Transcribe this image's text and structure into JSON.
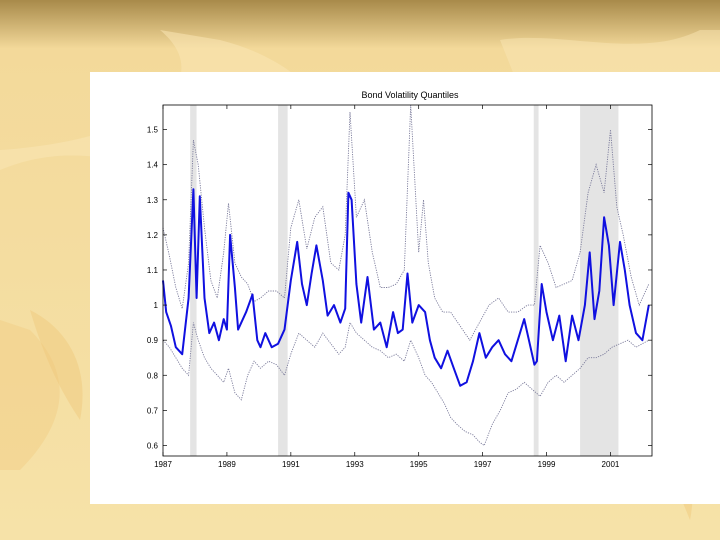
{
  "colors": {
    "slide_top": "#a88a4a",
    "slide_mid": "#f3d99a",
    "slide_bottom": "#f6e2a8",
    "panel": "#ffffff",
    "median_line": "#1010e0",
    "quantile_line": "#7a7a9a",
    "recession_shade": "#e4e4e4",
    "axis": "#000000"
  },
  "chart_data": {
    "type": "line",
    "title": "Bond Volatility Quantiles",
    "xlabel": "",
    "ylabel": "",
    "xlim": [
      1987,
      2002.3
    ],
    "ylim": [
      0.57,
      1.57
    ],
    "x_ticks": [
      1987,
      1989,
      1991,
      1993,
      1995,
      1997,
      1999,
      2001
    ],
    "x_tick_labels": [
      "1987",
      "1989",
      "1991",
      "1993",
      "1995",
      "1997",
      "1999",
      "2001"
    ],
    "y_ticks": [
      0.6,
      0.7,
      0.8,
      0.9,
      1.0,
      1.1,
      1.2,
      1.3,
      1.4,
      1.5
    ],
    "y_tick_labels": [
      "0.6",
      "0.7",
      "0.8",
      "0.9",
      "1",
      "1.1",
      "1.2",
      "1.3",
      "1.4",
      "1.5"
    ],
    "grid": false,
    "legend": "none",
    "shaded_periods": [
      [
        1987.85,
        1988.05
      ],
      [
        1990.6,
        1990.9
      ],
      [
        1998.6,
        1998.75
      ],
      [
        2000.05,
        2001.25
      ]
    ],
    "series": [
      {
        "style": "solid",
        "x": [
          1987.0,
          1987.1,
          1987.25,
          1987.4,
          1987.6,
          1987.8,
          1987.95,
          1988.05,
          1988.15,
          1988.3,
          1988.45,
          1988.6,
          1988.75,
          1988.9,
          1989.0,
          1989.1,
          1989.25,
          1989.35,
          1989.45,
          1989.6,
          1989.8,
          1989.95,
          1990.05,
          1990.2,
          1990.4,
          1990.6,
          1990.8,
          1991.0,
          1991.2,
          1991.35,
          1991.5,
          1991.65,
          1991.8,
          1992.0,
          1992.15,
          1992.35,
          1992.55,
          1992.7,
          1992.8,
          1992.9,
          1993.05,
          1993.2,
          1993.4,
          1993.6,
          1993.8,
          1994.0,
          1994.2,
          1994.35,
          1994.5,
          1994.65,
          1994.8,
          1995.0,
          1995.2,
          1995.35,
          1995.5,
          1995.7,
          1995.9,
          1996.1,
          1996.3,
          1996.5,
          1996.7,
          1996.9,
          1997.1,
          1997.3,
          1997.5,
          1997.7,
          1997.9,
          1998.1,
          1998.3,
          1998.5,
          1998.62,
          1998.7,
          1998.85,
          1999.0,
          1999.2,
          1999.4,
          1999.6,
          1999.8,
          2000.0,
          2000.2,
          2000.35,
          2000.5,
          2000.65,
          2000.8,
          2000.95,
          2001.1,
          2001.3,
          2001.45,
          2001.6,
          2001.8,
          2002.0,
          2002.2
        ],
        "y": [
          1.07,
          0.98,
          0.94,
          0.88,
          0.86,
          1.02,
          1.33,
          1.02,
          1.31,
          1.02,
          0.92,
          0.95,
          0.9,
          0.96,
          0.93,
          1.2,
          1.05,
          0.93,
          0.95,
          0.98,
          1.03,
          0.9,
          0.88,
          0.92,
          0.88,
          0.89,
          0.93,
          1.07,
          1.18,
          1.06,
          1.0,
          1.09,
          1.17,
          1.07,
          0.97,
          1.0,
          0.95,
          0.99,
          1.32,
          1.3,
          1.06,
          0.95,
          1.08,
          0.93,
          0.95,
          0.88,
          0.98,
          0.92,
          0.93,
          1.09,
          0.95,
          1.0,
          0.98,
          0.9,
          0.85,
          0.82,
          0.87,
          0.82,
          0.77,
          0.78,
          0.84,
          0.92,
          0.85,
          0.88,
          0.9,
          0.86,
          0.84,
          0.9,
          0.96,
          0.88,
          0.83,
          0.84,
          1.06,
          0.98,
          0.9,
          0.97,
          0.84,
          0.97,
          0.9,
          1.0,
          1.15,
          0.96,
          1.04,
          1.25,
          1.17,
          1.0,
          1.18,
          1.1,
          1.0,
          0.92,
          0.9,
          1.0
        ]
      },
      {
        "style": "dotted",
        "x": [
          1987.0,
          1987.2,
          1987.4,
          1987.6,
          1987.8,
          1987.95,
          1988.1,
          1988.3,
          1988.5,
          1988.7,
          1988.9,
          1989.05,
          1989.25,
          1989.45,
          1989.65,
          1989.85,
          1990.05,
          1990.3,
          1990.55,
          1990.8,
          1991.0,
          1991.25,
          1991.5,
          1991.75,
          1992.0,
          1992.25,
          1992.5,
          1992.7,
          1992.85,
          1993.05,
          1993.3,
          1993.55,
          1993.8,
          1994.05,
          1994.3,
          1994.55,
          1994.75,
          1995.0,
          1995.15,
          1995.3,
          1995.5,
          1995.75,
          1996.0,
          1996.3,
          1996.6,
          1996.9,
          1997.2,
          1997.5,
          1997.8,
          1998.1,
          1998.4,
          1998.62,
          1998.8,
          1999.05,
          1999.3,
          1999.55,
          1999.8,
          2000.05,
          2000.3,
          2000.55,
          2000.8,
          2001.0,
          2001.2,
          2001.4,
          2001.65,
          2001.9,
          2002.2
        ],
        "y": [
          1.22,
          1.14,
          1.05,
          0.99,
          1.12,
          1.47,
          1.4,
          1.22,
          1.07,
          1.02,
          1.15,
          1.29,
          1.12,
          1.08,
          1.06,
          1.01,
          1.02,
          1.04,
          1.04,
          1.02,
          1.22,
          1.3,
          1.16,
          1.25,
          1.28,
          1.12,
          1.1,
          1.2,
          1.55,
          1.25,
          1.3,
          1.15,
          1.05,
          1.05,
          1.06,
          1.1,
          1.57,
          1.15,
          1.3,
          1.12,
          1.02,
          0.98,
          0.98,
          0.94,
          0.9,
          0.95,
          1.0,
          1.02,
          0.98,
          0.98,
          1.0,
          1.0,
          1.17,
          1.12,
          1.05,
          1.06,
          1.07,
          1.15,
          1.32,
          1.4,
          1.32,
          1.5,
          1.28,
          1.2,
          1.08,
          1.0,
          1.06
        ]
      },
      {
        "style": "dotted",
        "x": [
          1987.0,
          1987.2,
          1987.4,
          1987.6,
          1987.8,
          1987.95,
          1988.1,
          1988.3,
          1988.5,
          1988.7,
          1988.9,
          1989.05,
          1989.25,
          1989.45,
          1989.65,
          1989.85,
          1990.05,
          1990.3,
          1990.55,
          1990.8,
          1991.0,
          1991.25,
          1991.5,
          1991.75,
          1992.0,
          1992.25,
          1992.5,
          1992.7,
          1992.85,
          1993.05,
          1993.3,
          1993.55,
          1993.8,
          1994.05,
          1994.3,
          1994.55,
          1994.75,
          1995.0,
          1995.2,
          1995.4,
          1995.6,
          1995.8,
          1996.0,
          1996.2,
          1996.45,
          1996.7,
          1996.9,
          1997.05,
          1997.3,
          1997.55,
          1997.8,
          1998.05,
          1998.3,
          1998.55,
          1998.8,
          1999.05,
          1999.3,
          1999.55,
          1999.8,
          2000.05,
          2000.3,
          2000.55,
          2000.8,
          2001.05,
          2001.3,
          2001.55,
          2001.8,
          2002.2
        ],
        "y": [
          0.9,
          0.88,
          0.85,
          0.82,
          0.8,
          0.95,
          0.9,
          0.85,
          0.82,
          0.8,
          0.78,
          0.82,
          0.75,
          0.73,
          0.8,
          0.84,
          0.82,
          0.84,
          0.83,
          0.8,
          0.86,
          0.92,
          0.9,
          0.88,
          0.92,
          0.89,
          0.86,
          0.88,
          0.95,
          0.92,
          0.9,
          0.88,
          0.87,
          0.85,
          0.86,
          0.84,
          0.9,
          0.85,
          0.8,
          0.78,
          0.75,
          0.72,
          0.68,
          0.66,
          0.64,
          0.63,
          0.61,
          0.6,
          0.66,
          0.7,
          0.75,
          0.76,
          0.78,
          0.76,
          0.74,
          0.78,
          0.8,
          0.78,
          0.8,
          0.82,
          0.85,
          0.85,
          0.86,
          0.88,
          0.89,
          0.9,
          0.88,
          0.9
        ]
      }
    ]
  }
}
